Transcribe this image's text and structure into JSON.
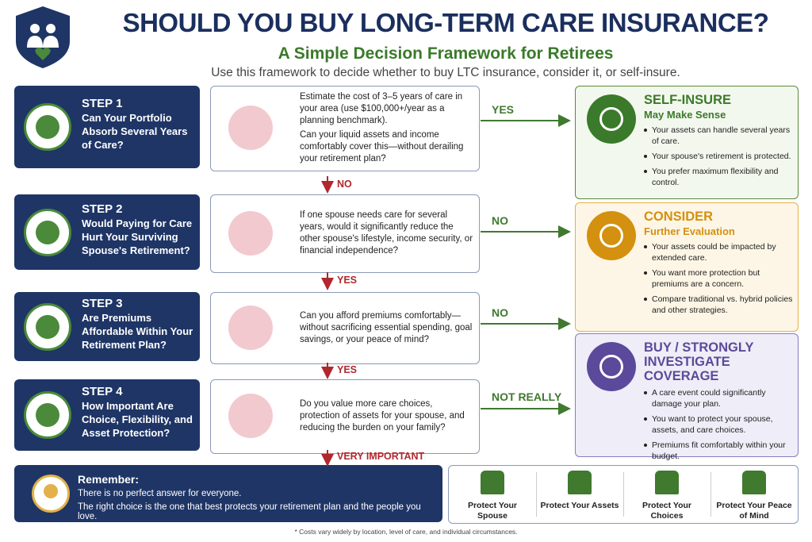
{
  "header": {
    "title": "SHOULD YOU BUY LONG-TERM CARE INSURANCE?",
    "subtitle": "A Simple Decision Framework for Retirees",
    "intro": "Use this framework to decide whether to buy LTC insurance, consider it, or self-insure."
  },
  "steps": [
    {
      "label": "STEP 1",
      "question": "Can Your Portfolio Absorb Several Years of Care?",
      "detail": [
        "Estimate the cost of 3–5 years of care in your area (use $100,000+/year as a planning benchmark).",
        "Can your liquid assets and income comfortably cover this—without derailing your retirement plan?"
      ],
      "side_answer": "YES",
      "down_answer": "NO"
    },
    {
      "label": "STEP 2",
      "question": "Would Paying for Care Hurt Your Surviving Spouse's Retirement?",
      "detail": [
        "If one spouse needs care for several years, would it significantly reduce the other spouse's lifestyle, income security, or financial independence?"
      ],
      "side_answer": "NO",
      "down_answer": "YES"
    },
    {
      "label": "STEP 3",
      "question": "Are Premiums Affordable Within Your Retirement Plan?",
      "detail": [
        "Can you afford premiums comfortably—without sacrificing essential spending, goal savings, or your peace of mind?"
      ],
      "side_answer": "NO",
      "down_answer": "YES"
    },
    {
      "label": "STEP 4",
      "question": "How Important Are Choice, Flexibility, and Asset Protection?",
      "detail": [
        "Do you value more care choices, protection of assets for your spouse, and reducing the burden on your family?"
      ],
      "side_answer": "NOT REALLY",
      "down_answer": "VERY IMPORTANT"
    }
  ],
  "outcomes": [
    {
      "title": "SELF-INSURE",
      "subtitle": "May Make Sense",
      "points": [
        "Your assets can handle several years of care.",
        "Your spouse's retirement is protected.",
        "You prefer maximum flexibility and control."
      ]
    },
    {
      "title": "CONSIDER",
      "subtitle": "Further Evaluation",
      "points": [
        "Your assets could be impacted by extended care.",
        "You want more protection but premiums are a concern.",
        "Compare traditional vs. hybrid policies and other strategies."
      ]
    },
    {
      "title": "BUY / STRONGLY INVESTIGATE COVERAGE",
      "points": [
        "A care event could significantly damage your plan.",
        "You want to protect your spouse, assets, and care choices.",
        "Premiums fit comfortably within your budget."
      ]
    }
  ],
  "remember": {
    "title": "Remember:",
    "lines": [
      "There is no perfect answer for everyone.",
      "The right choice is the one that best protects your retirement plan and the people you love."
    ]
  },
  "protect": [
    "Protect Your Spouse",
    "Protect Your Assets",
    "Protect Your Choices",
    "Protect Your Peace of Mind"
  ],
  "footnote": "* Costs vary widely by location, level of care, and individual circumstances."
}
